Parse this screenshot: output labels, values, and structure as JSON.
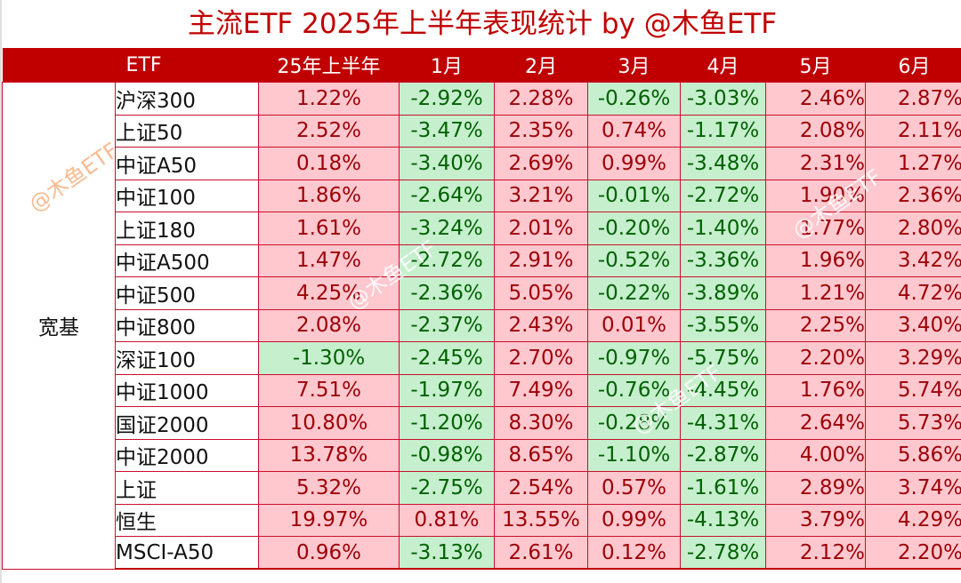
{
  "title": "主流ETF 2025年上半年表现统计 by @木鱼ETF",
  "colors": {
    "header_bg": "#c00000",
    "title_text": "#c00000",
    "positive_bg": "#ffc7ce",
    "positive_text": "#9c0006",
    "negative_bg": "#c6efce",
    "negative_text": "#006100"
  },
  "table": {
    "headers": [
      "ETF",
      "25年上半年",
      "1月",
      "2月",
      "3月",
      "4月",
      "5月",
      "6月"
    ],
    "category": "宽基",
    "rows": [
      {
        "name": "沪深300",
        "values": [
          "1.22%",
          "-2.92%",
          "2.28%",
          "-0.26%",
          "-3.03%",
          "2.46%",
          "2.87%"
        ]
      },
      {
        "name": "上证50",
        "values": [
          "2.52%",
          "-3.47%",
          "2.35%",
          "0.74%",
          "-1.17%",
          "2.08%",
          "2.11%"
        ]
      },
      {
        "name": "中证A50",
        "values": [
          "0.18%",
          "-3.40%",
          "2.69%",
          "0.99%",
          "-3.48%",
          "2.31%",
          "1.27%"
        ]
      },
      {
        "name": "中证100",
        "values": [
          "1.86%",
          "-2.64%",
          "3.21%",
          "-0.01%",
          "-2.72%",
          "1.90%",
          "2.36%"
        ]
      },
      {
        "name": "上证180",
        "values": [
          "1.61%",
          "-3.24%",
          "2.01%",
          "-0.20%",
          "-1.40%",
          "1.77%",
          "2.80%"
        ]
      },
      {
        "name": "中证A500",
        "values": [
          "1.47%",
          "-2.72%",
          "2.91%",
          "-0.52%",
          "-3.36%",
          "1.96%",
          "3.42%"
        ]
      },
      {
        "name": "中证500",
        "values": [
          "4.25%",
          "-2.36%",
          "5.05%",
          "-0.22%",
          "-3.89%",
          "1.21%",
          "4.72%"
        ]
      },
      {
        "name": "中证800",
        "values": [
          "2.08%",
          "-2.37%",
          "2.43%",
          "0.01%",
          "-3.55%",
          "2.25%",
          "3.40%"
        ]
      },
      {
        "name": "深证100",
        "values": [
          "-1.30%",
          "-2.45%",
          "2.70%",
          "-0.97%",
          "-5.75%",
          "2.20%",
          "3.29%"
        ]
      },
      {
        "name": "中证1000",
        "values": [
          "7.51%",
          "-1.97%",
          "7.49%",
          "-0.76%",
          "-4.45%",
          "1.76%",
          "5.74%"
        ]
      },
      {
        "name": "国证2000",
        "values": [
          "10.80%",
          "-1.20%",
          "8.30%",
          "-0.28%",
          "-4.31%",
          "2.64%",
          "5.73%"
        ]
      },
      {
        "name": "中证2000",
        "values": [
          "13.78%",
          "-0.98%",
          "8.65%",
          "-1.10%",
          "-2.87%",
          "4.00%",
          "5.86%"
        ]
      },
      {
        "name": "上证",
        "values": [
          "5.32%",
          "-2.75%",
          "2.54%",
          "0.57%",
          "-1.61%",
          "2.89%",
          "3.74%"
        ]
      },
      {
        "name": "恒生",
        "values": [
          "19.97%",
          "0.81%",
          "13.55%",
          "0.99%",
          "-4.13%",
          "3.79%",
          "4.29%"
        ]
      },
      {
        "name": "MSCI-A50",
        "values": [
          "0.96%",
          "-3.13%",
          "2.61%",
          "0.12%",
          "-2.78%",
          "2.12%",
          "2.20%"
        ]
      }
    ]
  },
  "watermarks": [
    "@木鱼ETF",
    "@木鱼ETF",
    "@木鱼ETF",
    "@木鱼ETF"
  ],
  "chart_data": {
    "type": "table",
    "title": "主流ETF 2025年上半年表现统计 by @木鱼ETF",
    "columns": [
      "ETF",
      "25年上半年",
      "1月",
      "2月",
      "3月",
      "4月",
      "5月",
      "6月"
    ],
    "group": "宽基",
    "rows": [
      [
        "沪深300",
        1.22,
        -2.92,
        2.28,
        -0.26,
        -3.03,
        2.46,
        2.87
      ],
      [
        "上证50",
        2.52,
        -3.47,
        2.35,
        0.74,
        -1.17,
        2.08,
        2.11
      ],
      [
        "中证A50",
        0.18,
        -3.4,
        2.69,
        0.99,
        -3.48,
        2.31,
        1.27
      ],
      [
        "中证100",
        1.86,
        -2.64,
        3.21,
        -0.01,
        -2.72,
        1.9,
        2.36
      ],
      [
        "上证180",
        1.61,
        -3.24,
        2.01,
        -0.2,
        -1.4,
        1.77,
        2.8
      ],
      [
        "中证A500",
        1.47,
        -2.72,
        2.91,
        -0.52,
        -3.36,
        1.96,
        3.42
      ],
      [
        "中证500",
        4.25,
        -2.36,
        5.05,
        -0.22,
        -3.89,
        1.21,
        4.72
      ],
      [
        "中证800",
        2.08,
        -2.37,
        2.43,
        0.01,
        -3.55,
        2.25,
        3.4
      ],
      [
        "深证100",
        -1.3,
        -2.45,
        2.7,
        -0.97,
        -5.75,
        2.2,
        3.29
      ],
      [
        "中证1000",
        7.51,
        -1.97,
        7.49,
        -0.76,
        -4.45,
        1.76,
        5.74
      ],
      [
        "国证2000",
        10.8,
        -1.2,
        8.3,
        -0.28,
        -4.31,
        2.64,
        5.73
      ],
      [
        "中证2000",
        13.78,
        -0.98,
        8.65,
        -1.1,
        -2.87,
        4.0,
        5.86
      ],
      [
        "上证",
        5.32,
        -2.75,
        2.54,
        0.57,
        -1.61,
        2.89,
        3.74
      ],
      [
        "恒生",
        19.97,
        0.81,
        13.55,
        0.99,
        -4.13,
        3.79,
        4.29
      ],
      [
        "MSCI-A50",
        0.96,
        -3.13,
        2.61,
        0.12,
        -2.78,
        2.12,
        2.2
      ]
    ],
    "unit": "%"
  }
}
